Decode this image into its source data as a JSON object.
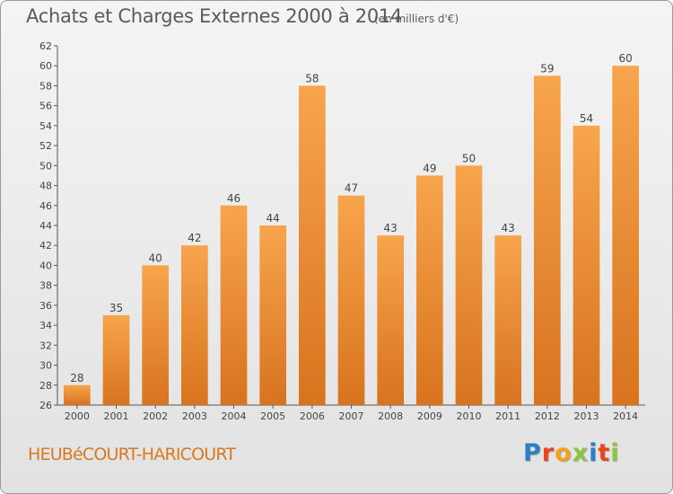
{
  "title": "Achats et Charges Externes 2000 à 2014",
  "subtitle": "(en milliers d'€)",
  "commune": "HEUBéCOURT-HARICOURT",
  "brand": {
    "letters": [
      "P",
      "r",
      "o",
      "x",
      "i",
      "t",
      "i"
    ],
    "colors": [
      "#2a7fc9",
      "#e8461e",
      "#f2a21b",
      "#8cc63f",
      "#2a7fc9",
      "#e8461e",
      "#8cc63f"
    ]
  },
  "colors": {
    "bar_light": "#f7a54d",
    "bar_dark": "#d8731e",
    "label": "#444444",
    "axis": "#555555"
  },
  "chart_data": {
    "type": "bar",
    "title": "Achats et Charges Externes 2000 à 2014",
    "subtitle": "(en milliers d'€)",
    "xlabel": "",
    "ylabel": "",
    "categories": [
      "2000",
      "2001",
      "2002",
      "2003",
      "2004",
      "2005",
      "2006",
      "2007",
      "2008",
      "2009",
      "2010",
      "2011",
      "2012",
      "2013",
      "2014"
    ],
    "values": [
      28,
      35,
      40,
      42,
      46,
      44,
      58,
      47,
      43,
      49,
      50,
      43,
      59,
      54,
      60
    ],
    "ylim": [
      26,
      62
    ],
    "yticks": [
      26,
      28,
      30,
      32,
      34,
      36,
      38,
      40,
      42,
      44,
      46,
      48,
      50,
      52,
      54,
      56,
      58,
      60,
      62
    ],
    "grid": false,
    "data_labels": true
  }
}
